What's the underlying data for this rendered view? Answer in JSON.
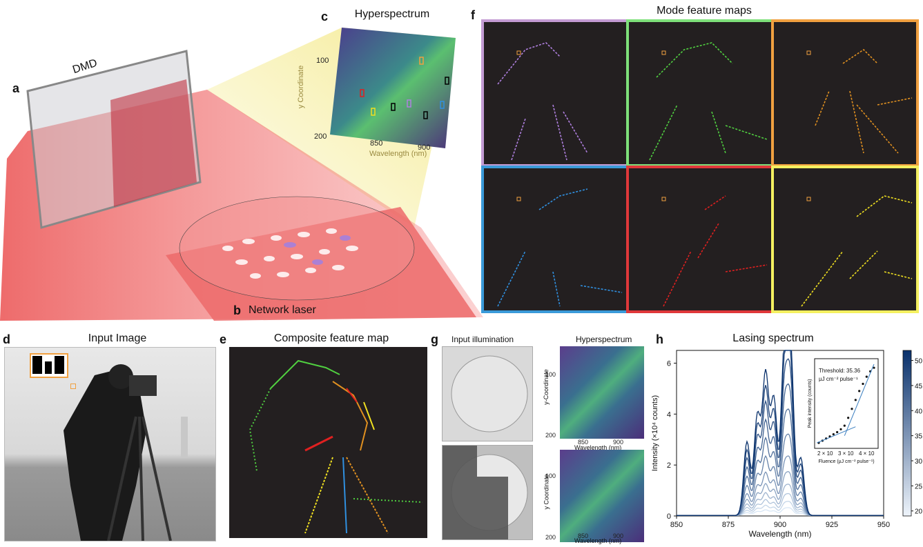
{
  "panel_letters": {
    "a": "a",
    "b": "b",
    "c": "c",
    "d": "d",
    "e": "e",
    "f": "f",
    "g": "g",
    "h": "h"
  },
  "panel_a": {
    "dmd_label": "DMD"
  },
  "panel_b": {
    "label": "Network laser"
  },
  "panel_c": {
    "title": "Hyperspectrum",
    "ylabel": "y Coordinate",
    "xlabel": "Wavelength (nm)",
    "yticks": [
      "100",
      "200"
    ],
    "xticks": [
      "850",
      "900"
    ]
  },
  "panel_f": {
    "title": "Mode feature maps",
    "border_colors": [
      "#c39bd3",
      "#7ee07a",
      "#f0a040",
      "#3a9ad9",
      "#e0383a",
      "#f4f060"
    ],
    "line_colors": [
      "#b080e0",
      "#50d040",
      "#e09020",
      "#3090e0",
      "#e02020",
      "#f0e020"
    ]
  },
  "panel_d": {
    "title": "Input Image"
  },
  "panel_e": {
    "title": "Composite feature map"
  },
  "panel_g": {
    "col1_title": "Input illumination",
    "col2_title": "Hyperspectrum",
    "top": {
      "ylabel": "y-Coordinate",
      "xlabel": "Wavelength (nm)",
      "yticks": [
        "100",
        "200"
      ],
      "xticks": [
        "850",
        "900"
      ]
    },
    "bottom": {
      "ylabel": "y Coordinate",
      "xlabel": "Wavelength (nm)",
      "yticks": [
        "100",
        "200"
      ],
      "xticks": [
        "850",
        "900"
      ]
    }
  },
  "chart_data": {
    "type": "line",
    "title": "Lasing spectrum",
    "xlabel": "Wavelength (nm)",
    "ylabel": "Intensity (×10⁴ counts)",
    "xlim": [
      850,
      950
    ],
    "ylim": [
      0,
      6.5
    ],
    "xticks": [
      "850",
      "875",
      "900",
      "925",
      "950"
    ],
    "yticks": [
      "0",
      "2",
      "4",
      "6"
    ],
    "colorbar": {
      "label": "Fluence (µJ cm⁻² pulse⁻¹)",
      "range": [
        19,
        52
      ],
      "ticks": [
        "20",
        "25",
        "30",
        "35",
        "40",
        "45",
        "50"
      ]
    },
    "peak_heights": [
      0.25,
      0.45,
      0.7,
      1.0,
      1.4,
      1.9,
      2.6,
      3.4,
      4.2,
      5.0,
      5.7,
      6.4
    ],
    "series_peaks_nm": [
      884,
      889,
      893,
      897,
      902,
      905,
      910
    ],
    "inset": {
      "type": "scatter",
      "xlabel": "Fluence (µJ cm⁻² pulse⁻¹)",
      "ylabel": "Peak intensity (counts)",
      "annotation_line1": "Threshold: 35.36",
      "annotation_line2": "µJ cm⁻² pulse⁻¹",
      "xticks": [
        "2 × 10",
        "3 × 10",
        "4 × 10"
      ],
      "points_x": [
        20,
        22,
        24,
        26,
        28,
        30,
        32,
        34,
        36,
        38,
        40,
        42,
        44,
        46,
        48,
        50
      ],
      "points_logy": [
        0.0,
        0.06,
        0.12,
        0.18,
        0.24,
        0.3,
        0.38,
        0.48,
        0.7,
        0.95,
        1.2,
        1.45,
        1.65,
        1.85,
        2.0,
        2.1
      ]
    }
  }
}
